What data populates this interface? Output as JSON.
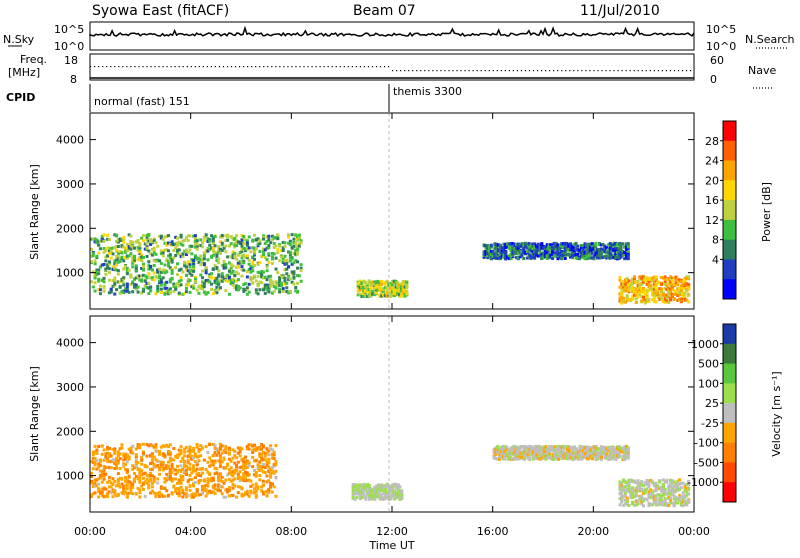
{
  "header": {
    "station": "Syowa East (fitACF)",
    "beam": "Beam 07",
    "date": "11/Jul/2010"
  },
  "top_panels": {
    "nsky_label": "N.Sky",
    "nsearch_label": "N.Search",
    "count_ticks": [
      "10^5",
      "10^0"
    ],
    "freq_label_line1": "Freq.",
    "freq_label_line2": "[MHz]",
    "freq_ticks": [
      "18",
      "8"
    ],
    "nave_label": "Nave",
    "nave_ticks": [
      "60",
      "0"
    ],
    "cpid_label": "CPID",
    "cpid_segments": [
      {
        "name": "normal (fast) 151",
        "start_hour": 0
      },
      {
        "name": "themis 3300",
        "start_hour": 12
      }
    ]
  },
  "chart_data": [
    {
      "type": "heatmap",
      "panel": "power",
      "ylabel": "Slant Range [km]",
      "xlabel": "Time UT",
      "x_ticks": [
        "00:00",
        "04:00",
        "08:00",
        "12:00",
        "16:00",
        "20:00",
        "00:00"
      ],
      "xlim_hours": [
        0,
        24
      ],
      "y_ticks": [
        1000,
        2000,
        3000,
        4000
      ],
      "ylim": [
        180,
        4600
      ],
      "colorbar": {
        "label": "Power [dB]",
        "ticks": [
          "4",
          "8",
          "12",
          "16",
          "20",
          "24",
          "28"
        ],
        "colors": [
          "#0000ff",
          "#1f3fbf",
          "#2f7f5f",
          "#3fbf3f",
          "#bfd13f",
          "#ffd700",
          "#ffa500",
          "#ff6000",
          "#ff0000"
        ]
      },
      "echo_regions": [
        {
          "t0": 0.0,
          "t1": 8.4,
          "r0": 500,
          "r1": 1850,
          "mean_dB": 12
        },
        {
          "t0": 10.6,
          "t1": 12.6,
          "r0": 450,
          "r1": 800,
          "mean_dB": 16
        },
        {
          "t0": 15.6,
          "t1": 21.4,
          "r0": 1300,
          "r1": 1650,
          "mean_dB": 6
        },
        {
          "t0": 21.0,
          "t1": 23.8,
          "r0": 300,
          "r1": 900,
          "mean_dB": 22
        }
      ]
    },
    {
      "type": "heatmap",
      "panel": "velocity",
      "ylabel": "Slant Range [km]",
      "xlabel": "Time UT",
      "x_ticks": [
        "00:00",
        "04:00",
        "08:00",
        "12:00",
        "16:00",
        "20:00",
        "00:00"
      ],
      "xlim_hours": [
        0,
        24
      ],
      "y_ticks": [
        1000,
        2000,
        3000,
        4000
      ],
      "ylim": [
        180,
        4600
      ],
      "colorbar": {
        "label": "Velocity [m s⁻¹]",
        "ticks": [
          "1000",
          "500",
          "100",
          "25",
          "-25",
          "-100",
          "-500",
          "-1000"
        ],
        "colors": [
          "#1a3ca8",
          "#3c7a3c",
          "#5ac83c",
          "#9be04b",
          "#bfbfbf",
          "#ffa500",
          "#ff7f00",
          "#ff4a00",
          "#ff0000"
        ]
      },
      "echo_regions": [
        {
          "t0": 0.0,
          "t1": 7.4,
          "r0": 500,
          "r1": 1700,
          "mean_velocity": -300
        },
        {
          "t0": 10.4,
          "t1": 12.4,
          "r0": 450,
          "r1": 800,
          "mean_velocity": 100
        },
        {
          "t0": 16.0,
          "t1": 21.4,
          "r0": 1350,
          "r1": 1650,
          "mean_velocity": 0
        },
        {
          "t0": 21.0,
          "t1": 23.8,
          "r0": 300,
          "r1": 900,
          "mean_velocity": 50
        }
      ]
    }
  ]
}
